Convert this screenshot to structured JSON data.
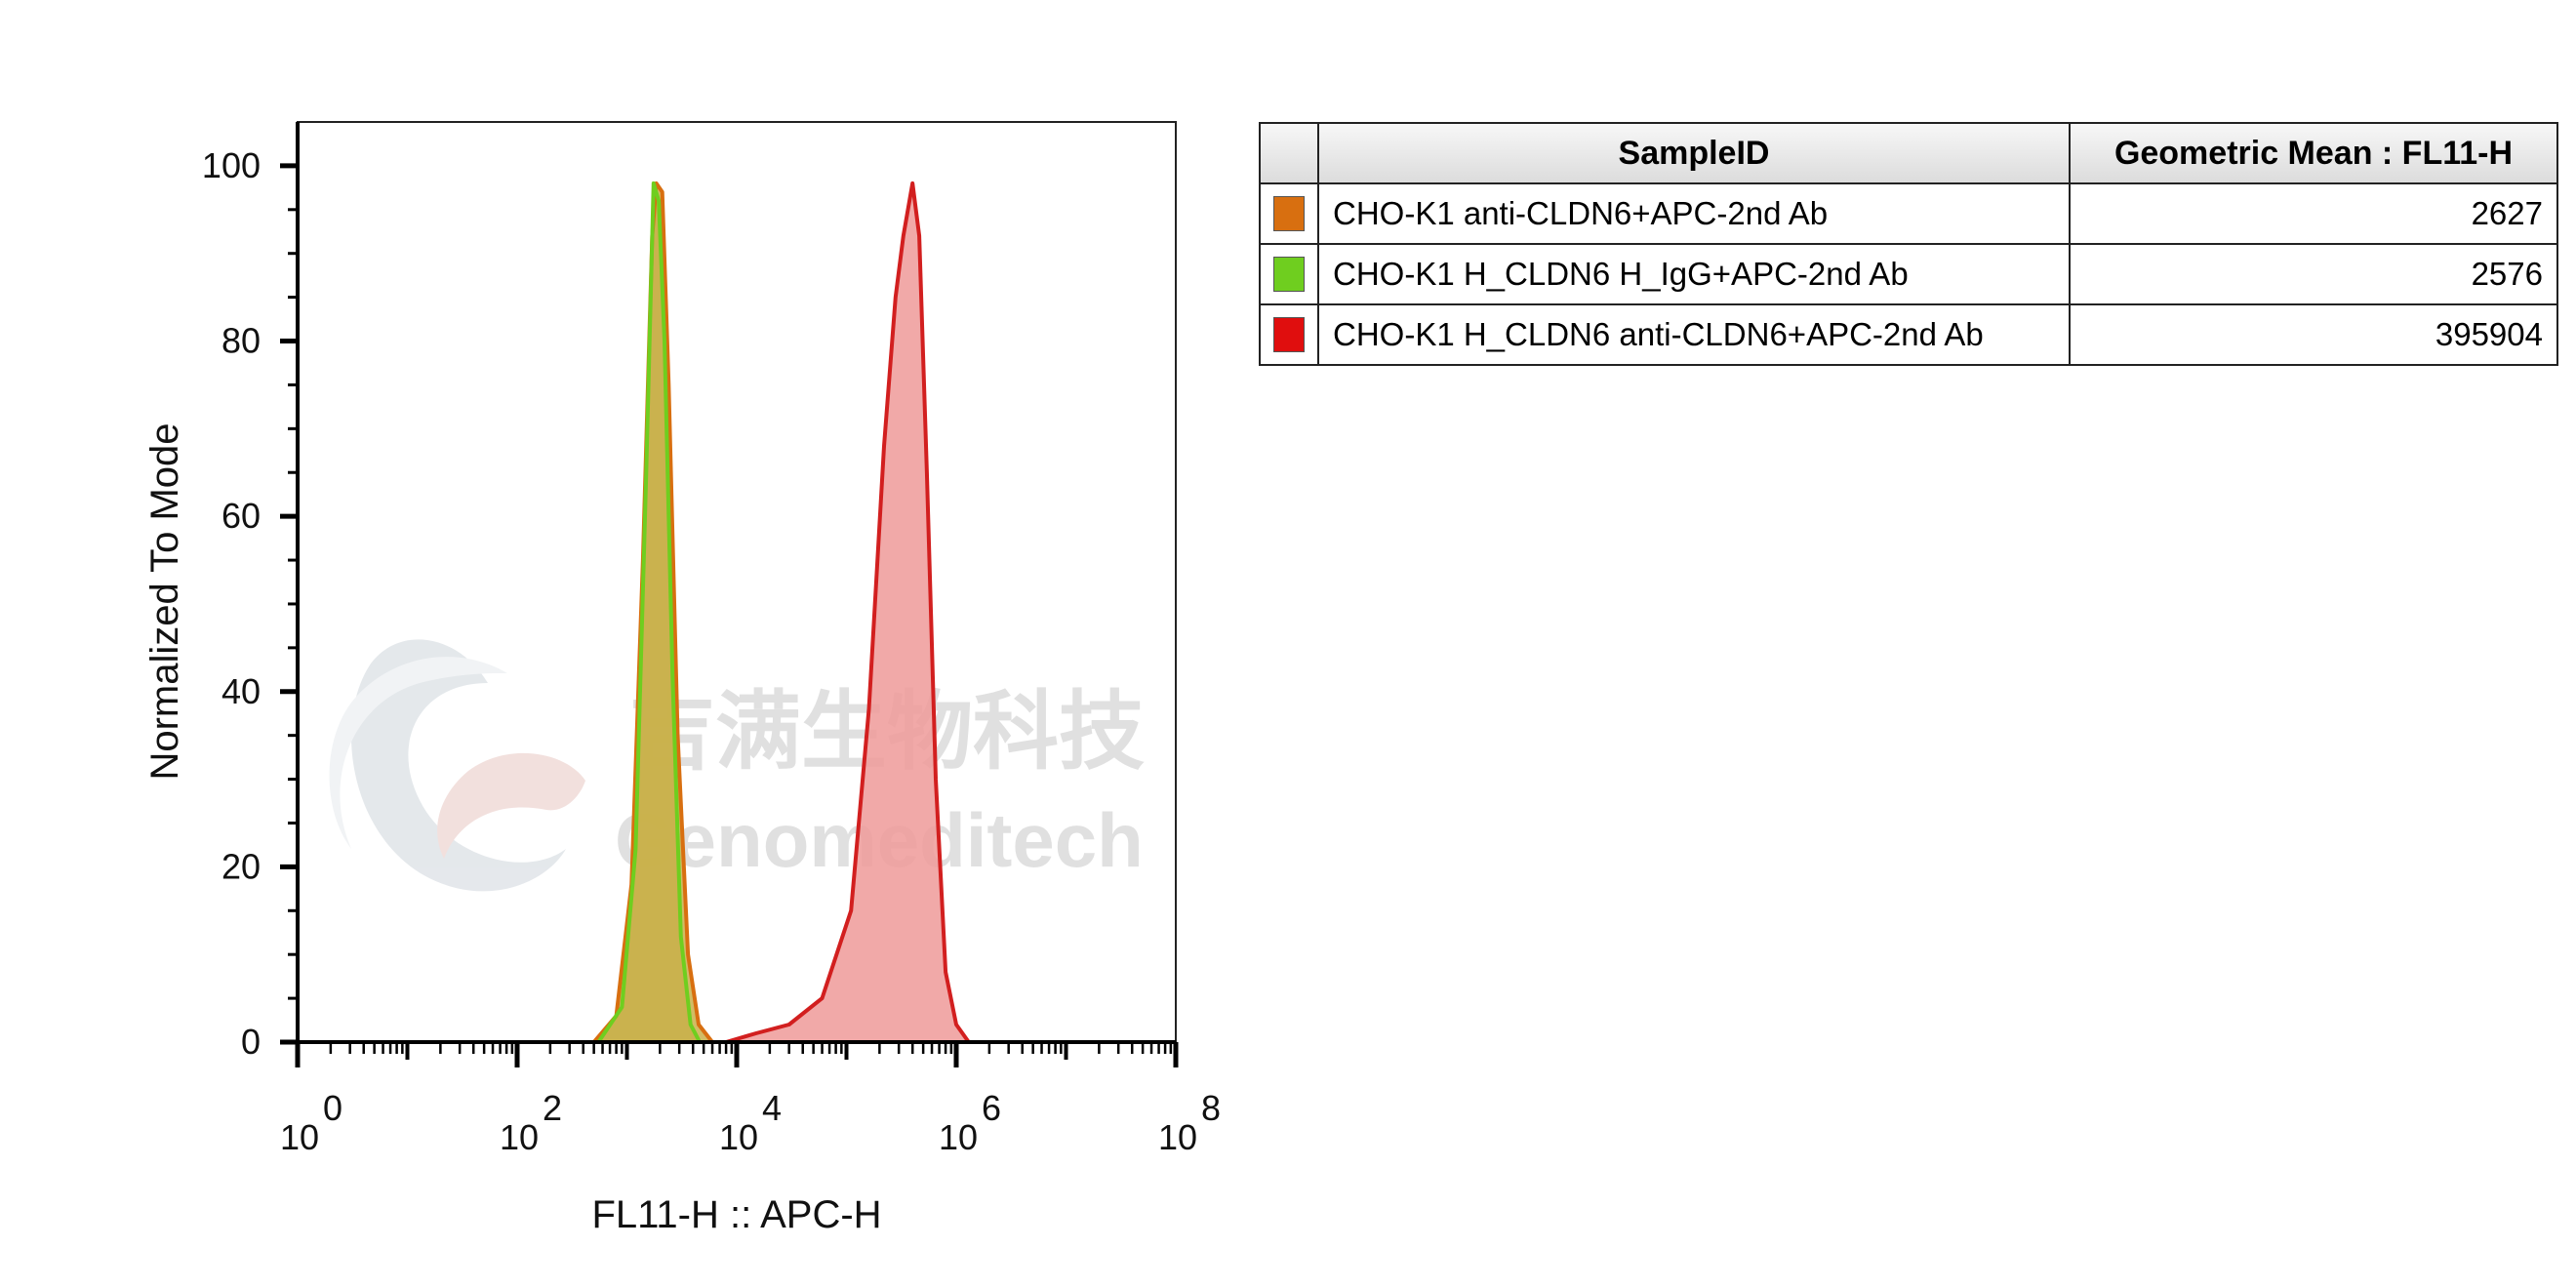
{
  "chart_data": {
    "type": "histogram",
    "xlabel": "FL11-H :: APC-H",
    "ylabel": "Normalized To Mode",
    "x_scale": "log",
    "xlim": [
      1,
      100000000
    ],
    "ylim": [
      0,
      105
    ],
    "x_ticks": [
      {
        "base": "10",
        "exp": "0"
      },
      {
        "base": "10",
        "exp": "2"
      },
      {
        "base": "10",
        "exp": "4"
      },
      {
        "base": "10",
        "exp": "6"
      },
      {
        "base": "10",
        "exp": "8"
      }
    ],
    "y_ticks": [
      "0",
      "20",
      "40",
      "60",
      "80",
      "100"
    ],
    "series": [
      {
        "name": "CHO-K1 anti-CLDN6+APC-2nd Ab",
        "color": "#d86f10",
        "fill": "#c9b04a",
        "points": [
          [
            500,
            0
          ],
          [
            800,
            3
          ],
          [
            1100,
            18
          ],
          [
            1400,
            55
          ],
          [
            1700,
            92
          ],
          [
            1850,
            98
          ],
          [
            2100,
            97
          ],
          [
            2400,
            75
          ],
          [
            2900,
            35
          ],
          [
            3600,
            10
          ],
          [
            4500,
            2
          ],
          [
            6000,
            0
          ]
        ]
      },
      {
        "name": "CHO-K1 H_CLDN6 H_IgG+APC-2nd Ab",
        "color": "#6fce1f",
        "fill": "#c9b04a",
        "points": [
          [
            550,
            0
          ],
          [
            900,
            4
          ],
          [
            1200,
            22
          ],
          [
            1500,
            65
          ],
          [
            1750,
            98
          ],
          [
            1950,
            96
          ],
          [
            2200,
            80
          ],
          [
            2600,
            42
          ],
          [
            3100,
            12
          ],
          [
            3800,
            2
          ],
          [
            4600,
            0
          ]
        ]
      },
      {
        "name": "CHO-K1 H_CLDN6 anti-CLDN6+APC-2nd Ab",
        "color": "#d21f1f",
        "fill": "#ef9a99",
        "points": [
          [
            8000,
            0
          ],
          [
            15000,
            1
          ],
          [
            30000,
            2
          ],
          [
            60000,
            5
          ],
          [
            110000,
            15
          ],
          [
            160000,
            38
          ],
          [
            220000,
            68
          ],
          [
            280000,
            85
          ],
          [
            330000,
            92
          ],
          [
            400000,
            98
          ],
          [
            460000,
            92
          ],
          [
            540000,
            65
          ],
          [
            650000,
            30
          ],
          [
            800000,
            8
          ],
          [
            1000000,
            2
          ],
          [
            1300000,
            0
          ]
        ]
      }
    ],
    "legend": {
      "position": "right",
      "headers": [
        "SampleID",
        "Geometric Mean : FL11-H"
      ],
      "rows": [
        {
          "sample": "CHO-K1 anti-CLDN6+APC-2nd Ab",
          "value": "2627",
          "color": "#d86f10"
        },
        {
          "sample": "CHO-K1 H_CLDN6 H_IgG+APC-2nd Ab",
          "value": "2576",
          "color": "#6fce1f"
        },
        {
          "sample": "CHO-K1 H_CLDN6 anti-CLDN6+APC-2nd Ab",
          "value": "395904",
          "color": "#e00e0e"
        }
      ]
    }
  },
  "watermark": {
    "chinese": "吉满生物科技",
    "english": "Genomeditech"
  }
}
